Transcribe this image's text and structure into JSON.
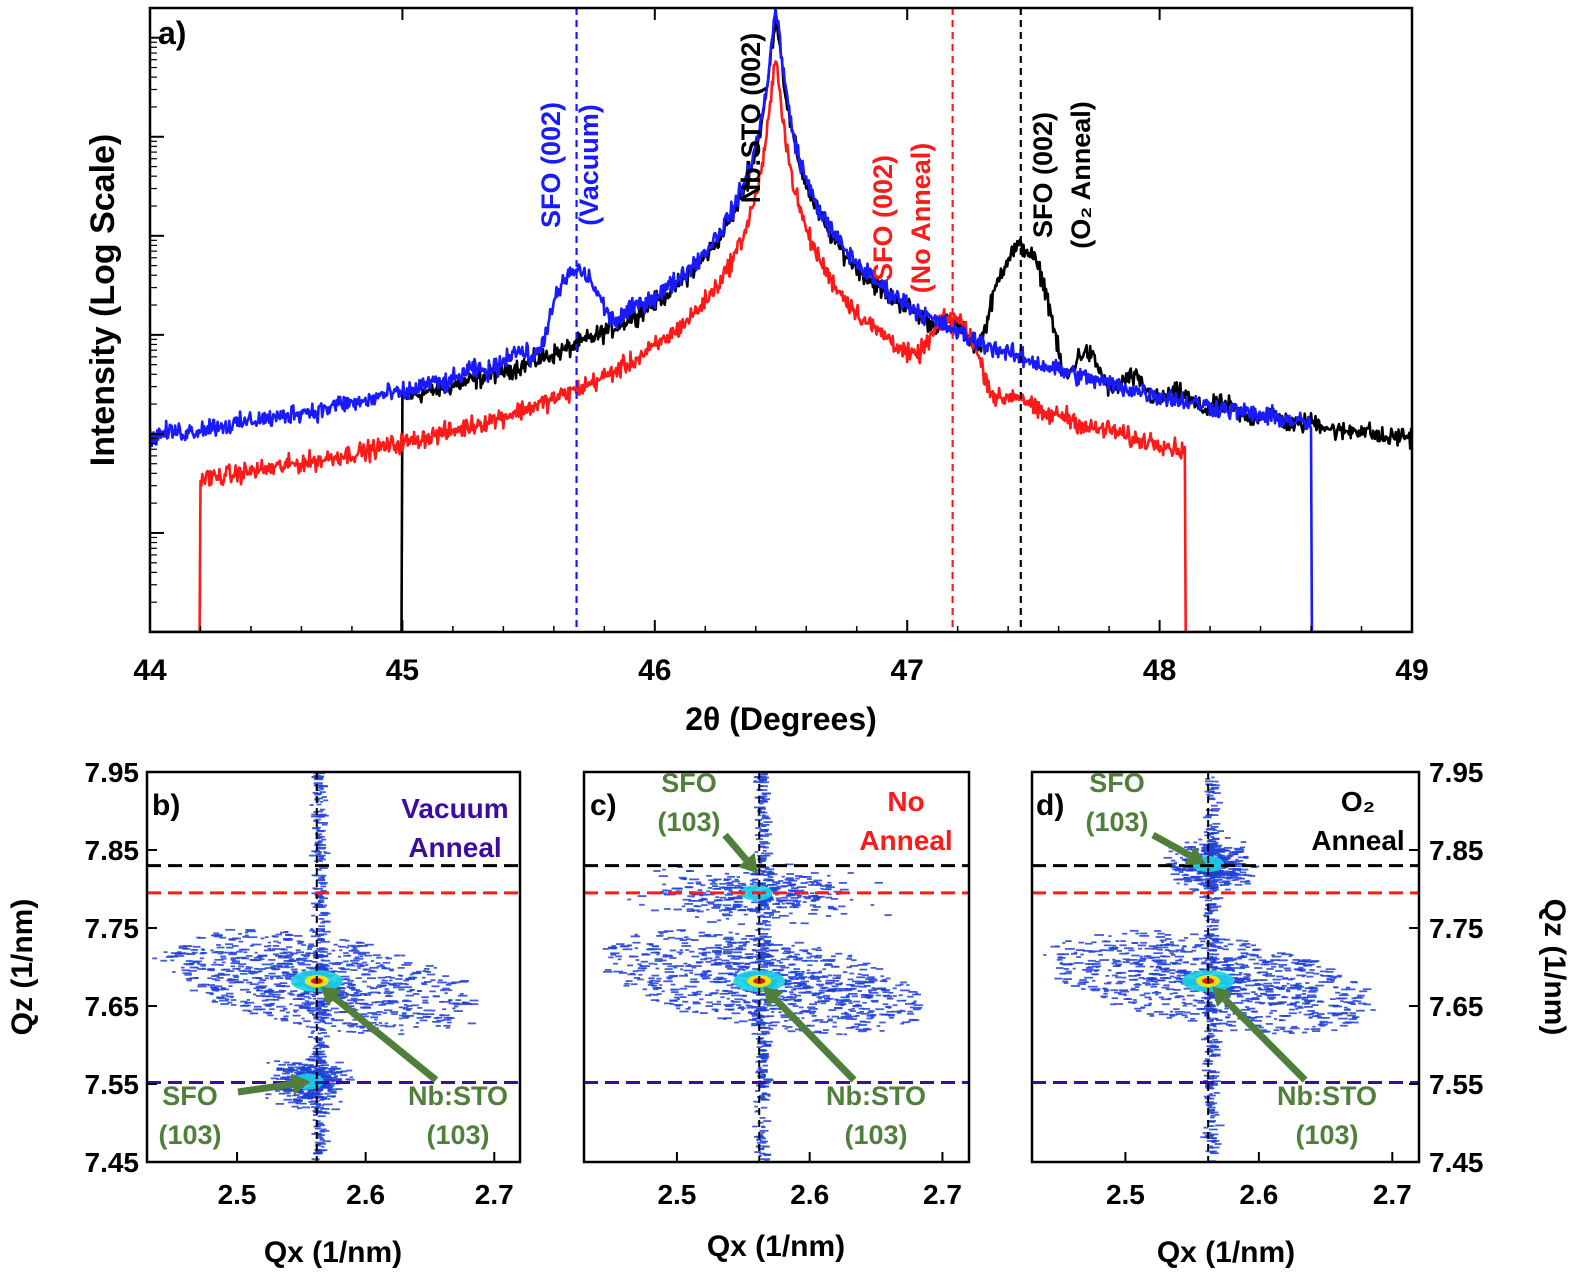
{
  "colors": {
    "vacuum": "#1a1aff",
    "no_anneal": "#ff1a1a",
    "o2": "#000000",
    "indigo": "#3a0ca3",
    "green": "#4f7f3a",
    "map_blue": "#1f3fd6",
    "map_cyan": "#19d1e6",
    "map_yellow": "#ffe600",
    "map_red": "#e0001b"
  },
  "chart_data": [
    {
      "id": "a",
      "type": "line",
      "panel_label": "a)",
      "title": "",
      "xlabel": "2θ (Degrees)",
      "ylabel": "Intensity (Log Scale)",
      "xlim": [
        44,
        49
      ],
      "xticks": [
        "44",
        "45",
        "46",
        "47",
        "48",
        "49"
      ],
      "ylim_decades": [
        0,
        6.3
      ],
      "grid": false,
      "substrate_peak": 46.48,
      "series": [
        {
          "name": "Vacuum Anneal",
          "color": "#1a1aff",
          "peak": 45.69,
          "fringe_period": 0.17,
          "film_height": 3.55,
          "noise_start": 44.0,
          "noise_end": 48.6
        },
        {
          "name": "No Anneal",
          "color": "#ff1a1a",
          "peak": 47.18,
          "fringe_period": 0.18,
          "film_height": 3.05,
          "noise_start": 44.2,
          "noise_end": 48.1
        },
        {
          "name": "O2 Anneal",
          "color": "#000000",
          "peak": 47.45,
          "fringe_period": 0.18,
          "film_height": 3.85,
          "noise_start": 45.0,
          "noise_end": 49.0
        }
      ],
      "reference_lines": [
        {
          "x": 45.69,
          "color": "#1a1aff",
          "label_lines": [
            "SFO (002)",
            "(Vacuum)"
          ]
        },
        {
          "x": 47.18,
          "color": "#ff1a1a",
          "label_lines": [
            "SFO (002)",
            "(No Anneal)"
          ]
        },
        {
          "x": 47.45,
          "color": "#000000",
          "label_lines": [
            "SFO (002)",
            "(O₂ Anneal)"
          ]
        }
      ],
      "annotations": [
        {
          "text": "Nb:STO (002)",
          "x": 46.48,
          "color": "#000000"
        }
      ]
    },
    {
      "id": "b",
      "type": "heatmap",
      "panel_label": "b)",
      "condition_lines": [
        "Vacuum",
        "Anneal"
      ],
      "condition_color": "#3a0ca3",
      "xlabel": "Qx (1/nm)",
      "ylabel": "Qz (1/nm)",
      "xlim": [
        2.43,
        2.72
      ],
      "ylim": [
        7.45,
        7.95
      ],
      "xticks": [
        "2.5",
        "2.6",
        "2.7"
      ],
      "yticks": [
        "7.45",
        "7.55",
        "7.65",
        "7.75",
        "7.85",
        "7.95"
      ],
      "ref_vline_qx": 2.562,
      "ref_hlines": [
        {
          "qz": 7.83,
          "color": "#000000"
        },
        {
          "qz": 7.795,
          "color": "#ff1a1a"
        },
        {
          "qz": 7.552,
          "color": "#3a0ca3"
        }
      ],
      "substrate_peak": {
        "qx": 2.562,
        "qz": 7.682
      },
      "film_peak": {
        "qx": 2.555,
        "qz": 7.553
      },
      "annotations": [
        {
          "id": "sfo",
          "lines": [
            "SFO",
            "(103)"
          ],
          "target_qx": 2.557,
          "target_qz": 7.553
        },
        {
          "id": "sto",
          "lines": [
            "Nb:STO",
            "(103)"
          ],
          "target_qx": 2.565,
          "target_qz": 7.675
        }
      ]
    },
    {
      "id": "c",
      "type": "heatmap",
      "panel_label": "c)",
      "condition_lines": [
        "No",
        "Anneal"
      ],
      "condition_color": "#ff1a1a",
      "xlabel": "Qx (1/nm)",
      "ylabel": "",
      "xlim": [
        2.43,
        2.72
      ],
      "ylim": [
        7.45,
        7.95
      ],
      "xticks": [
        "2.5",
        "2.6",
        "2.7"
      ],
      "yticks": [],
      "ref_vline_qx": 2.562,
      "ref_hlines": [
        {
          "qz": 7.83,
          "color": "#000000"
        },
        {
          "qz": 7.795,
          "color": "#ff1a1a"
        },
        {
          "qz": 7.552,
          "color": "#3a0ca3"
        }
      ],
      "substrate_peak": {
        "qx": 2.562,
        "qz": 7.682
      },
      "film_peak": {
        "qx": 2.56,
        "qz": 7.795
      },
      "annotations": [
        {
          "id": "sfo",
          "lines": [
            "SFO",
            "(103)"
          ],
          "target_qx": 2.561,
          "target_qz": 7.82
        },
        {
          "id": "sto",
          "lines": [
            "Nb:STO",
            "(103)"
          ],
          "target_qx": 2.565,
          "target_qz": 7.675
        }
      ]
    },
    {
      "id": "d",
      "type": "heatmap",
      "panel_label": "d)",
      "condition_lines": [
        "O₂",
        "Anneal"
      ],
      "condition_color": "#000000",
      "xlabel": "Qx (1/nm)",
      "ylabel": "Qz (1/nm)",
      "xlim": [
        2.43,
        2.72
      ],
      "ylim": [
        7.45,
        7.95
      ],
      "xticks": [
        "2.5",
        "2.6",
        "2.7"
      ],
      "yticks": [
        "7.45",
        "7.55",
        "7.65",
        "7.75",
        "7.85",
        "7.95"
      ],
      "ref_vline_qx": 2.562,
      "ref_hlines": [
        {
          "qz": 7.83,
          "color": "#000000"
        },
        {
          "qz": 7.795,
          "color": "#ff1a1a"
        },
        {
          "qz": 7.552,
          "color": "#3a0ca3"
        }
      ],
      "substrate_peak": {
        "qx": 2.562,
        "qz": 7.682
      },
      "film_peak": {
        "qx": 2.562,
        "qz": 7.832
      },
      "annotations": [
        {
          "id": "sfo",
          "lines": [
            "SFO",
            "(103)"
          ],
          "target_qx": 2.56,
          "target_qz": 7.832
        },
        {
          "id": "sto",
          "lines": [
            "Nb:STO",
            "(103)"
          ],
          "target_qx": 2.565,
          "target_qz": 7.675
        }
      ]
    }
  ]
}
